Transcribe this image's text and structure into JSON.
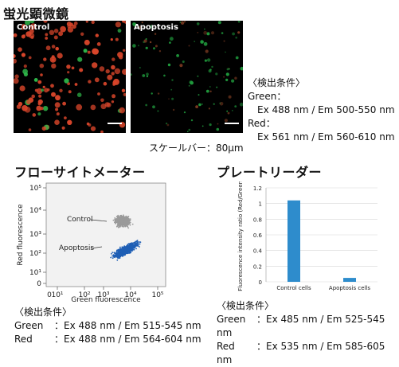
{
  "microscope": {
    "title": "蛍光顕微鏡",
    "panels": [
      {
        "label": "Control"
      },
      {
        "label": "Apoptosis"
      }
    ],
    "conditions": {
      "heading": "〈検出条件〉",
      "green_label": "Green：",
      "green_value": "Ex 488 nm / Em 500-550 nm",
      "red_label": "Red：",
      "red_value": "Ex 561 nm / Em 560-610 nm"
    },
    "scale_bar": "スケールバー：80μm"
  },
  "flow": {
    "title": "フローサイトメーター",
    "ylabel": "Red fluorescence",
    "xlabel": "Green fluorescence",
    "control_label": "Control",
    "apoptosis_label": "Apoptosis",
    "tick_labels": {
      "x": [
        "10¹",
        "10²",
        "10³",
        "10⁴",
        "10⁵"
      ],
      "y": [
        "0",
        "10¹",
        "10²",
        "10³",
        "10⁴",
        "10⁵"
      ],
      "x_zero": "0"
    },
    "colors": {
      "control": "#9a9a9a",
      "apoptosis": "#1f5fb5"
    },
    "conditions": {
      "heading": "〈検出条件〉",
      "green_label": "Green",
      "green_value": "：Ex 488 nm / Em 515-545 nm",
      "red_label": "Red",
      "red_value": "：Ex 488 nm / Em 564-604 nm"
    }
  },
  "plate": {
    "title": "プレートリーダー",
    "conditions": {
      "heading": "〈検出条件〉",
      "green_label": "Green",
      "green_value": "：Ex 485 nm / Em 525-545 nm",
      "red_label": "Red",
      "red_value": "：Ex 535 nm / Em 585-605 nm"
    }
  },
  "chart_data": {
    "type": "bar",
    "categories": [
      "Control cells",
      "Apoptosis cells"
    ],
    "values": [
      1.04,
      0.05
    ],
    "ylabel": "Fluorescence intensity ratio (Red/Green)",
    "ylim": [
      0,
      1.2
    ],
    "yticks": [
      "0",
      "0.2",
      "0.4",
      "0.6",
      "0.8",
      "1",
      "1.2"
    ],
    "grid": true,
    "bar_color": "#2e8ccc"
  }
}
